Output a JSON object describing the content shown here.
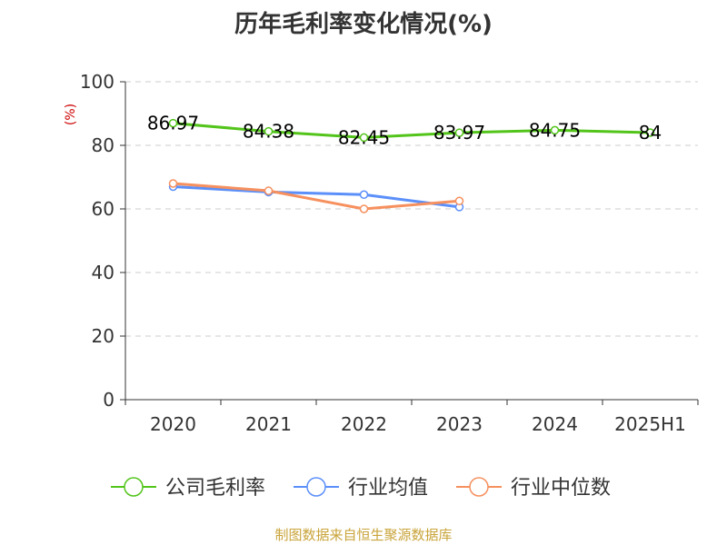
{
  "colors": {
    "company": "#52c41a",
    "industry_avg": "#5b8ff9",
    "industry_median": "#f6905e",
    "axis": "#333333",
    "grid": "#cccccc",
    "unit": "#cc0000",
    "source": "#c9a43a"
  },
  "chart_data": {
    "type": "line",
    "title": "历年毛利率变化情况(%)",
    "ylabel": "(%)",
    "xlabel": "",
    "categories": [
      "2020",
      "2021",
      "2022",
      "2023",
      "2024",
      "2025H1"
    ],
    "ylim": [
      0,
      100
    ],
    "yticks": [
      0,
      20,
      40,
      60,
      80,
      100
    ],
    "grid": "horizontal dashed",
    "legend_position": "bottom",
    "series": [
      {
        "name": "公司毛利率",
        "values": [
          86.97,
          84.38,
          82.45,
          83.97,
          84.75,
          84
        ],
        "labels": [
          "86.97",
          "84.38",
          "82.45",
          "83.97",
          "84.75",
          "84"
        ]
      },
      {
        "name": "行业均值",
        "values": [
          67,
          65.3,
          64.5,
          60.6,
          null,
          null
        ]
      },
      {
        "name": "行业中位数",
        "values": [
          68,
          65.7,
          60,
          62.5,
          null,
          null
        ]
      }
    ]
  },
  "footer": {
    "source": "制图数据来自恒生聚源数据库"
  }
}
